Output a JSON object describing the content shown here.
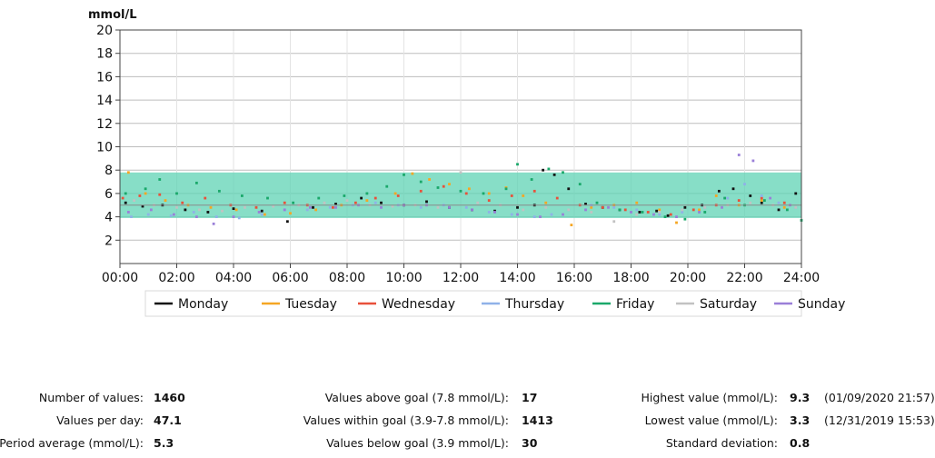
{
  "chart_data": {
    "type": "scatter",
    "ylabel": "mmol/L",
    "ylim": [
      0,
      20
    ],
    "yticks": [
      "2",
      "4",
      "6",
      "8",
      "10",
      "12",
      "14",
      "16",
      "18",
      "20"
    ],
    "xlim_hours": [
      0,
      24
    ],
    "xticks": [
      "00:00",
      "02:00",
      "04:00",
      "06:00",
      "08:00",
      "10:00",
      "12:00",
      "14:00",
      "16:00",
      "18:00",
      "20:00",
      "22:00",
      "24:00"
    ],
    "goal_band": [
      3.9,
      7.8
    ],
    "goal_band_color": "#5fd3b4",
    "legend_placement": "bottom",
    "grid": true,
    "series": [
      {
        "name": "Monday",
        "color": "#111111",
        "points": [
          [
            0.2,
            5.2
          ],
          [
            0.8,
            4.9
          ],
          [
            1.5,
            5.0
          ],
          [
            2.3,
            4.6
          ],
          [
            3.1,
            4.4
          ],
          [
            4.0,
            4.7
          ],
          [
            5.0,
            4.5
          ],
          [
            5.9,
            3.6
          ],
          [
            6.8,
            4.8
          ],
          [
            7.6,
            5.1
          ],
          [
            8.5,
            5.6
          ],
          [
            9.2,
            5.2
          ],
          [
            10.0,
            5.0
          ],
          [
            10.8,
            5.3
          ],
          [
            11.6,
            4.8
          ],
          [
            12.4,
            4.6
          ],
          [
            13.2,
            4.5
          ],
          [
            14.0,
            4.8
          ],
          [
            14.6,
            5.0
          ],
          [
            14.9,
            8.0
          ],
          [
            15.3,
            7.6
          ],
          [
            15.8,
            6.4
          ],
          [
            16.4,
            5.1
          ],
          [
            17.0,
            4.8
          ],
          [
            17.6,
            4.6
          ],
          [
            18.3,
            4.4
          ],
          [
            18.9,
            4.5
          ],
          [
            19.3,
            4.1
          ],
          [
            19.9,
            4.8
          ],
          [
            20.5,
            5.0
          ],
          [
            21.1,
            6.2
          ],
          [
            21.6,
            6.4
          ],
          [
            22.2,
            5.8
          ],
          [
            22.6,
            5.2
          ],
          [
            23.2,
            4.6
          ],
          [
            23.8,
            6.0
          ]
        ]
      },
      {
        "name": "Tuesday",
        "color": "#f5a623",
        "points": [
          [
            0.3,
            7.8
          ],
          [
            0.9,
            6.0
          ],
          [
            1.6,
            5.4
          ],
          [
            2.4,
            5.0
          ],
          [
            3.2,
            4.8
          ],
          [
            4.1,
            4.6
          ],
          [
            5.1,
            4.2
          ],
          [
            6.0,
            4.3
          ],
          [
            6.9,
            4.6
          ],
          [
            7.8,
            5.0
          ],
          [
            8.7,
            5.4
          ],
          [
            9.7,
            6.0
          ],
          [
            10.3,
            7.7
          ],
          [
            10.9,
            7.2
          ],
          [
            11.6,
            6.8
          ],
          [
            12.3,
            6.4
          ],
          [
            13.0,
            6.0
          ],
          [
            13.6,
            6.5
          ],
          [
            14.2,
            5.8
          ],
          [
            15.0,
            5.2
          ],
          [
            15.9,
            3.3
          ],
          [
            16.6,
            4.8
          ],
          [
            17.4,
            5.0
          ],
          [
            18.2,
            5.2
          ],
          [
            19.0,
            4.6
          ],
          [
            19.6,
            3.5
          ],
          [
            20.4,
            4.6
          ],
          [
            21.0,
            5.8
          ],
          [
            21.8,
            5.0
          ],
          [
            22.6,
            5.4
          ],
          [
            23.4,
            4.8
          ]
        ]
      },
      {
        "name": "Wednesday",
        "color": "#e8503a",
        "points": [
          [
            0.1,
            5.6
          ],
          [
            0.7,
            5.8
          ],
          [
            1.4,
            5.9
          ],
          [
            2.2,
            5.2
          ],
          [
            3.0,
            5.6
          ],
          [
            3.9,
            5.0
          ],
          [
            4.8,
            4.8
          ],
          [
            5.8,
            5.2
          ],
          [
            6.6,
            5.0
          ],
          [
            7.5,
            4.8
          ],
          [
            8.3,
            5.2
          ],
          [
            9.0,
            5.6
          ],
          [
            9.8,
            5.8
          ],
          [
            10.6,
            6.2
          ],
          [
            11.4,
            6.6
          ],
          [
            12.2,
            6.0
          ],
          [
            13.0,
            5.4
          ],
          [
            13.8,
            5.8
          ],
          [
            14.6,
            6.2
          ],
          [
            15.4,
            5.6
          ],
          [
            16.2,
            5.0
          ],
          [
            17.0,
            4.8
          ],
          [
            17.8,
            4.6
          ],
          [
            18.6,
            4.4
          ],
          [
            19.4,
            4.2
          ],
          [
            20.2,
            4.6
          ],
          [
            21.0,
            5.0
          ],
          [
            21.8,
            5.4
          ],
          [
            22.6,
            5.6
          ],
          [
            23.4,
            5.2
          ]
        ]
      },
      {
        "name": "Thursday",
        "color": "#8fb1e8",
        "points": [
          [
            0.4,
            4.0
          ],
          [
            1.0,
            4.2
          ],
          [
            1.8,
            4.1
          ],
          [
            2.6,
            4.4
          ],
          [
            3.4,
            4.0
          ],
          [
            4.2,
            3.9
          ],
          [
            5.0,
            4.2
          ],
          [
            5.8,
            4.6
          ],
          [
            6.6,
            4.6
          ],
          [
            7.4,
            4.8
          ],
          [
            8.2,
            5.0
          ],
          [
            9.0,
            5.2
          ],
          [
            9.8,
            5.0
          ],
          [
            10.6,
            4.8
          ],
          [
            11.4,
            5.0
          ],
          [
            12.2,
            4.8
          ],
          [
            13.0,
            4.4
          ],
          [
            13.8,
            4.2
          ],
          [
            14.6,
            4.0
          ],
          [
            15.2,
            4.2
          ],
          [
            15.8,
            4.6
          ],
          [
            16.6,
            5.0
          ],
          [
            17.4,
            4.8
          ],
          [
            18.2,
            4.6
          ],
          [
            19.0,
            4.2
          ],
          [
            19.8,
            4.4
          ],
          [
            20.6,
            4.8
          ],
          [
            21.4,
            5.6
          ],
          [
            22.0,
            6.8
          ],
          [
            22.6,
            5.8
          ],
          [
            23.2,
            5.2
          ],
          [
            23.8,
            4.8
          ]
        ]
      },
      {
        "name": "Friday",
        "color": "#1aa86a",
        "points": [
          [
            0.2,
            6.0
          ],
          [
            0.9,
            6.4
          ],
          [
            1.4,
            7.2
          ],
          [
            2.0,
            6.0
          ],
          [
            2.7,
            6.9
          ],
          [
            3.5,
            6.2
          ],
          [
            4.3,
            5.8
          ],
          [
            5.2,
            5.6
          ],
          [
            6.1,
            5.2
          ],
          [
            7.0,
            5.6
          ],
          [
            7.9,
            5.8
          ],
          [
            8.7,
            6.0
          ],
          [
            9.4,
            6.6
          ],
          [
            10.0,
            7.6
          ],
          [
            10.6,
            7.0
          ],
          [
            11.2,
            6.5
          ],
          [
            12.0,
            6.2
          ],
          [
            12.8,
            6.0
          ],
          [
            13.6,
            6.4
          ],
          [
            14.0,
            8.5
          ],
          [
            14.5,
            7.2
          ],
          [
            15.1,
            8.1
          ],
          [
            15.6,
            7.8
          ],
          [
            16.2,
            6.8
          ],
          [
            16.8,
            5.2
          ],
          [
            17.6,
            4.6
          ],
          [
            18.4,
            4.4
          ],
          [
            19.2,
            4.0
          ],
          [
            19.9,
            3.8
          ],
          [
            20.6,
            4.4
          ],
          [
            21.3,
            5.6
          ],
          [
            22.0,
            5.0
          ],
          [
            22.7,
            5.4
          ],
          [
            23.5,
            4.6
          ],
          [
            24.0,
            3.7
          ]
        ]
      },
      {
        "name": "Saturday",
        "color": "#c2c2c2",
        "points": [
          [
            0.5,
            5.4
          ],
          [
            1.2,
            5.0
          ],
          [
            2.0,
            4.8
          ],
          [
            2.8,
            4.6
          ],
          [
            3.6,
            4.5
          ],
          [
            4.4,
            4.8
          ],
          [
            5.4,
            4.9
          ],
          [
            6.3,
            5.0
          ],
          [
            7.2,
            5.2
          ],
          [
            8.0,
            5.4
          ],
          [
            8.8,
            5.0
          ],
          [
            9.6,
            4.9
          ],
          [
            10.4,
            5.0
          ],
          [
            11.2,
            4.8
          ],
          [
            12.0,
            7.8
          ],
          [
            12.6,
            5.2
          ],
          [
            13.4,
            5.0
          ],
          [
            14.2,
            4.6
          ],
          [
            15.0,
            4.8
          ],
          [
            15.8,
            4.6
          ],
          [
            16.6,
            4.4
          ],
          [
            17.4,
            3.6
          ],
          [
            18.2,
            4.2
          ],
          [
            19.0,
            4.4
          ],
          [
            19.8,
            4.6
          ],
          [
            20.6,
            4.8
          ],
          [
            21.4,
            5.0
          ],
          [
            22.2,
            5.2
          ],
          [
            23.0,
            5.0
          ],
          [
            23.8,
            4.8
          ]
        ]
      },
      {
        "name": "Sunday",
        "color": "#9a7fd8",
        "points": [
          [
            0.3,
            4.4
          ],
          [
            1.1,
            4.6
          ],
          [
            1.9,
            4.2
          ],
          [
            2.7,
            4.0
          ],
          [
            3.3,
            3.4
          ],
          [
            4.0,
            4.0
          ],
          [
            4.9,
            4.4
          ],
          [
            5.8,
            4.6
          ],
          [
            6.7,
            4.8
          ],
          [
            7.6,
            4.8
          ],
          [
            8.4,
            5.0
          ],
          [
            9.2,
            4.8
          ],
          [
            10.0,
            5.0
          ],
          [
            10.8,
            5.0
          ],
          [
            11.6,
            4.8
          ],
          [
            12.4,
            4.6
          ],
          [
            13.2,
            4.4
          ],
          [
            14.0,
            4.2
          ],
          [
            14.8,
            4.0
          ],
          [
            15.6,
            4.2
          ],
          [
            16.4,
            4.6
          ],
          [
            17.2,
            4.8
          ],
          [
            18.0,
            4.4
          ],
          [
            18.8,
            4.2
          ],
          [
            19.6,
            4.0
          ],
          [
            20.4,
            4.4
          ],
          [
            21.2,
            4.8
          ],
          [
            21.8,
            9.3
          ],
          [
            22.3,
            8.8
          ],
          [
            22.9,
            5.6
          ],
          [
            23.6,
            5.0
          ]
        ]
      }
    ]
  },
  "stats": {
    "col1": [
      {
        "label": "Number of values:",
        "value": "1460"
      },
      {
        "label": "Values per day:",
        "value": "47.1"
      },
      {
        "label": "Period average (mmol/L):",
        "value": "5.3"
      }
    ],
    "col2": [
      {
        "label": "Values above goal (7.8 mmol/L):",
        "value": "17"
      },
      {
        "label": "Values within goal (3.9-7.8 mmol/L):",
        "value": "1413"
      },
      {
        "label": "Values below goal (3.9 mmol/L):",
        "value": "30"
      }
    ],
    "col3": [
      {
        "label": "Highest value (mmol/L):",
        "value": "9.3",
        "note": "(01/09/2020 21:57)"
      },
      {
        "label": "Lowest value (mmol/L):",
        "value": "3.3",
        "note": "(12/31/2019 15:53)"
      },
      {
        "label": "Standard deviation:",
        "value": "0.8",
        "note": ""
      }
    ]
  }
}
